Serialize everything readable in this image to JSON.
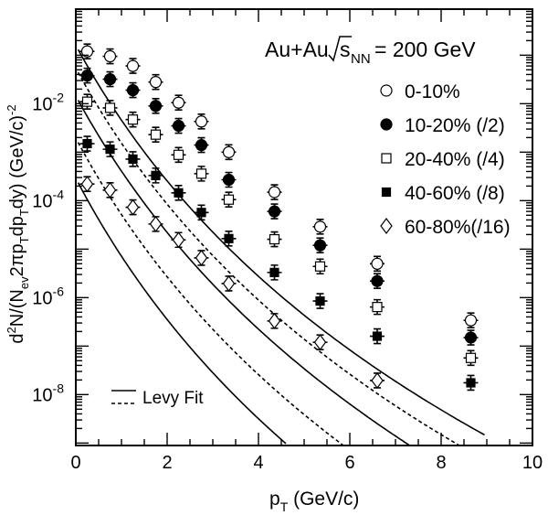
{
  "chart_data": {
    "type": "scatter",
    "title": "",
    "header": {
      "prefix": "Au+Au",
      "s_label": "s",
      "nn_label": "NN",
      "suffix": "= 200 GeV"
    },
    "xlabel": {
      "main": "p",
      "sub": "T",
      "rest": "(GeV/c)"
    },
    "ylabel": {
      "parts": [
        {
          "t": "d",
          "k": "n"
        },
        {
          "t": "2",
          "k": "sup"
        },
        {
          "t": "N/(N",
          "k": "n"
        },
        {
          "t": "ev",
          "k": "sub"
        },
        {
          "t": "2πp",
          "k": "n"
        },
        {
          "t": "T",
          "k": "sub"
        },
        {
          "t": "dp",
          "k": "n"
        },
        {
          "t": "T",
          "k": "sub"
        },
        {
          "t": "dy) (GeV/c)",
          "k": "n"
        },
        {
          "t": "-2",
          "k": "sup"
        }
      ]
    },
    "xlim": [
      0,
      10
    ],
    "ylim_log10": [
      -9.05,
      -0.05
    ],
    "y_scale": "log",
    "x_ticks": [
      "0",
      "2",
      "4",
      "6",
      "8",
      "10"
    ],
    "y_ticks": [
      {
        "base": "10",
        "exp": "-2",
        "pow": -2
      },
      {
        "base": "10",
        "exp": "-4",
        "pow": -4
      },
      {
        "base": "10",
        "exp": "-6",
        "pow": -6
      },
      {
        "base": "10",
        "exp": "-8",
        "pow": -8
      }
    ],
    "legend_position": "right",
    "fit_legend": {
      "label": "Levy Fit",
      "position": "bottom-left"
    },
    "series": [
      {
        "name": "0-10%",
        "marker": "open-circle",
        "fit": "solid",
        "x": [
          0.25,
          0.75,
          1.25,
          1.75,
          2.25,
          2.75,
          3.35,
          4.35,
          5.35,
          6.6,
          8.65
        ],
        "y": [
          0.12,
          0.095,
          0.06,
          0.028,
          0.0105,
          0.0043,
          0.001,
          0.00015,
          2.9e-05,
          5e-06,
          3.4e-07
        ],
        "fit_params": {
          "A": 0.16,
          "T": 0.25,
          "n": 15.4
        }
      },
      {
        "name": "10-20% (/2)",
        "marker": "filled-circle",
        "fit": "dashed",
        "x": [
          0.25,
          0.75,
          1.25,
          1.75,
          2.25,
          2.75,
          3.35,
          4.35,
          5.35,
          6.6,
          8.65
        ],
        "y": [
          0.038,
          0.032,
          0.019,
          0.009,
          0.0035,
          0.0014,
          0.00027,
          6e-05,
          1.2e-05,
          2.2e-06,
          1.5e-07
        ],
        "fit_params": {
          "A": 0.054,
          "T": 0.25,
          "n": 15.6
        }
      },
      {
        "name": "20-40% (/4)",
        "marker": "open-square",
        "fit": "solid",
        "x": [
          0.25,
          0.75,
          1.25,
          1.75,
          2.25,
          2.75,
          3.35,
          4.35,
          5.35,
          6.6,
          8.65
        ],
        "y": [
          0.011,
          0.0082,
          0.0047,
          0.0023,
          0.00088,
          0.00036,
          0.000105,
          1.6e-05,
          4.4e-06,
          6.4e-07,
          5.7e-08
        ],
        "fit_params": {
          "A": 0.0144,
          "T": 0.25,
          "n": 15.9
        }
      },
      {
        "name": "40-60% (/8)",
        "marker": "filled-square",
        "fit": "dashed",
        "x": [
          0.25,
          0.75,
          1.25,
          1.75,
          2.25,
          2.75,
          3.35,
          4.35,
          5.35,
          6.6,
          8.65
        ],
        "y": [
          0.0015,
          0.00115,
          0.00072,
          0.00033,
          0.000145,
          5.7e-05,
          1.65e-05,
          3.3e-06,
          8.5e-07,
          1.6e-07,
          1.75e-08
        ],
        "fit_params": {
          "A": 0.00195,
          "T": 0.245,
          "n": 15.9
        }
      },
      {
        "name": "60-80%(/16)",
        "marker": "open-diamond",
        "fit": "solid",
        "x": [
          0.25,
          0.75,
          1.25,
          1.75,
          2.25,
          2.75,
          3.35,
          4.35,
          5.35,
          6.6
        ],
        "y": [
          0.00022,
          0.000165,
          7.3e-05,
          3.3e-05,
          1.55e-05,
          6.6e-06,
          1.95e-06,
          3.3e-07,
          1.2e-07,
          1.95e-08
        ],
        "fit_params": {
          "A": 0.00029,
          "T": 0.24,
          "n": 16.0
        }
      }
    ]
  }
}
